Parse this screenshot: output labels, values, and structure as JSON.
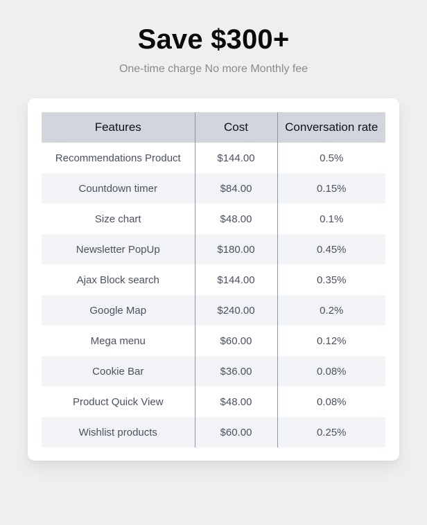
{
  "header": {
    "title": "Save $300+",
    "subtitle": "One-time charge No more Monthly fee"
  },
  "table": {
    "columns": [
      "Features",
      "Cost",
      "Conversation rate"
    ],
    "rows": [
      {
        "feature": "Recommendations Product",
        "cost": "$144.00",
        "rate": "0.5%"
      },
      {
        "feature": "Countdown timer",
        "cost": "$84.00",
        "rate": "0.15%"
      },
      {
        "feature": "Size chart",
        "cost": "$48.00",
        "rate": "0.1%"
      },
      {
        "feature": "Newsletter PopUp",
        "cost": "$180.00",
        "rate": "0.45%"
      },
      {
        "feature": "Ajax Block search",
        "cost": "$144.00",
        "rate": "0.35%"
      },
      {
        "feature": "Google Map",
        "cost": "$240.00",
        "rate": "0.2%"
      },
      {
        "feature": "Mega menu",
        "cost": "$60.00",
        "rate": "0.12%"
      },
      {
        "feature": "Cookie Bar",
        "cost": "$36.00",
        "rate": "0.08%"
      },
      {
        "feature": "Product Quick View",
        "cost": "$48.00",
        "rate": "0.08%"
      },
      {
        "feature": "Wishlist products",
        "cost": "$60.00",
        "rate": "0.25%"
      }
    ]
  },
  "colors": {
    "page_background": "#efefef",
    "card_background": "#ffffff",
    "header_row_background": "#d1d5de",
    "alternate_row_background": "#f3f4f7",
    "cell_text": "#4a5161",
    "subtitle_text": "#8a8a8a"
  }
}
